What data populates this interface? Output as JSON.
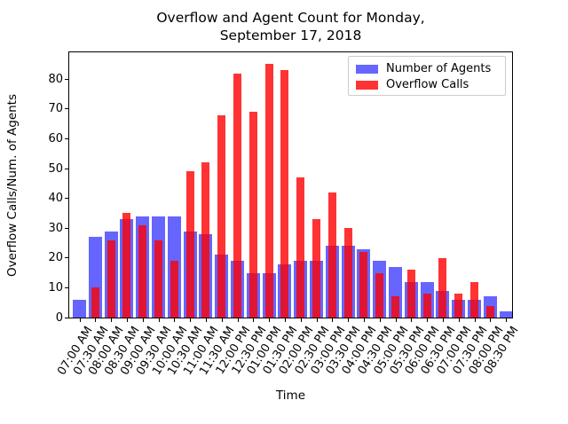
{
  "title": {
    "line1": "Overflow and Agent Count for Monday,",
    "line2": "September 17, 2018"
  },
  "axes": {
    "xlabel": "Time",
    "ylabel": "Overflow Calls/Num. of Agents"
  },
  "legend": {
    "items": [
      {
        "label": "Number of Agents",
        "color": "#6666ff"
      },
      {
        "label": "Overflow Calls",
        "color": "#ff3333"
      }
    ]
  },
  "chart_data": {
    "type": "bar",
    "title": "Overflow and Agent Count for Monday,\nSeptember 17, 2018",
    "xlabel": "Time",
    "ylabel": "Overflow Calls/Num. of Agents",
    "ylim": [
      0,
      89
    ],
    "yticks": [
      0,
      10,
      20,
      30,
      40,
      50,
      60,
      70,
      80
    ],
    "grid": false,
    "legend_position": "upper right",
    "bar_style": "overlapped, red drawn semi-transparent on top of wider blue",
    "categories": [
      "07:00 AM",
      "07:30 AM",
      "08:00 AM",
      "08:30 AM",
      "09:00 AM",
      "09:30 AM",
      "10:00 AM",
      "10:30 AM",
      "11:00 AM",
      "11:30 AM",
      "12:00 PM",
      "12:30 PM",
      "01:00 PM",
      "01:30 PM",
      "02:00 PM",
      "02:30 PM",
      "03:00 PM",
      "03:30 PM",
      "04:00 PM",
      "04:30 PM",
      "05:00 PM",
      "05:30 PM",
      "06:00 PM",
      "06:30 PM",
      "07:00 PM",
      "07:30 PM",
      "08:00 PM",
      "08:30 PM"
    ],
    "series": [
      {
        "name": "Number of Agents",
        "color": "#6666ff",
        "values": [
          6,
          27,
          29,
          33,
          34,
          34,
          34,
          29,
          28,
          21,
          19,
          15,
          15,
          18,
          19,
          19,
          24,
          24,
          23,
          19,
          17,
          12,
          12,
          9,
          6,
          6,
          7,
          2
        ]
      },
      {
        "name": "Overflow Calls",
        "color": "#ff3333",
        "values": [
          0,
          10,
          26,
          35,
          31,
          26,
          19,
          49,
          52,
          68,
          82,
          69,
          85,
          83,
          47,
          33,
          42,
          30,
          22,
          15,
          7,
          16,
          8,
          20,
          8,
          12,
          4,
          0
        ]
      }
    ]
  }
}
